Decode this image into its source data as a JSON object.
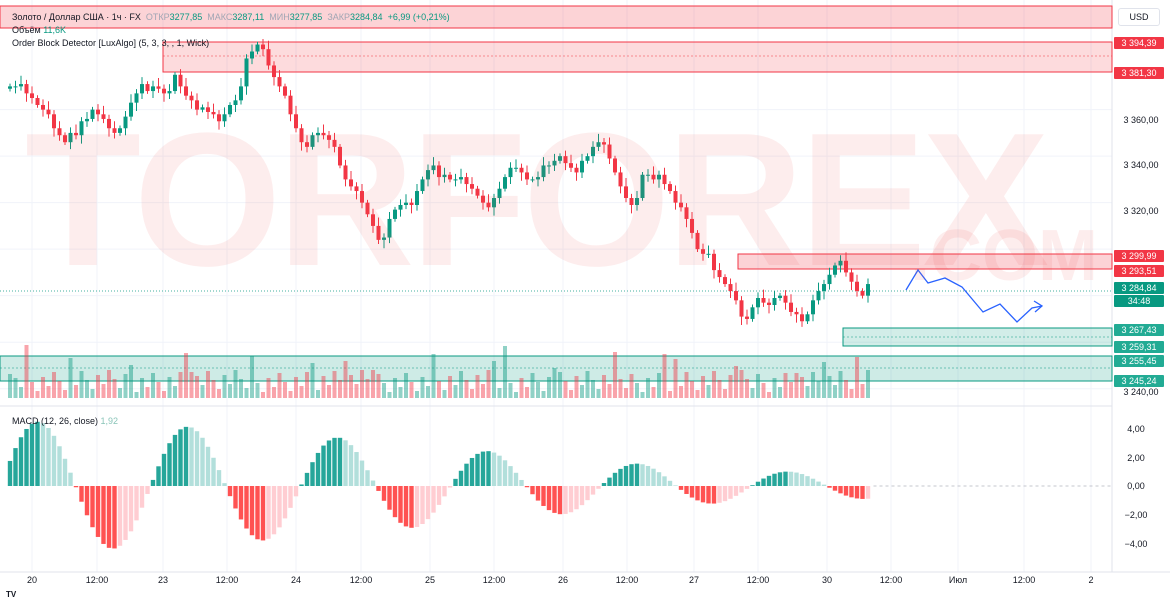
{
  "legend": {
    "symbol": "Золото / Доллар США · 1ч · FX",
    "open_label": "ОТКР",
    "open": "3277,85",
    "high_label": "МАКС",
    "high": "3287,11",
    "low_label": "МИН",
    "low": "3277,85",
    "close_label": "ЗАКР",
    "close": "3284,84",
    "change": "+6,99 (+0,21%)",
    "volume_label": "Объём",
    "volume": "11,6K",
    "indicator": "Order Block Detector [LuxAlgo] (5, 3, 3, , 1, Wick)",
    "macd": "MACD (12, 26, close)",
    "macd_value": "1,92"
  },
  "currency_button": "USD",
  "watermark": {
    "main": "TORFOREX",
    "domain": ".COM"
  },
  "tv_logo": "TV",
  "price_axis": {
    "ticks": [
      "3 360,00",
      "3 340,00",
      "3 320,00",
      "3 240,00"
    ],
    "boxes": [
      {
        "text": "3 394,39",
        "color": "#f23645"
      },
      {
        "text": "3 381,30",
        "color": "#f23645"
      },
      {
        "text": "3 299,99",
        "color": "#f23645"
      },
      {
        "text": "3 293,51",
        "color": "#f23645"
      },
      {
        "text": "3 284,84",
        "color": "#089981"
      },
      {
        "text": "34:48",
        "color": "#089981"
      },
      {
        "text": "3 267,43",
        "color": "#22ab94"
      },
      {
        "text": "3 259,31",
        "color": "#22ab94"
      },
      {
        "text": "3 255,45",
        "color": "#22ab94"
      },
      {
        "text": "3 245,24",
        "color": "#22ab94"
      }
    ]
  },
  "macd_axis": {
    "ticks": [
      "4,00",
      "2,00",
      "0,00",
      "−2,00",
      "−4,00"
    ]
  },
  "time_axis": {
    "ticks": [
      "20",
      "12:00",
      "23",
      "12:00",
      "24",
      "12:00",
      "25",
      "12:00",
      "26",
      "12:00",
      "27",
      "12:00",
      "30",
      "12:00",
      "Июл",
      "12:00",
      "2"
    ]
  },
  "colors": {
    "up": "#089981",
    "down": "#f23645",
    "bear_zone": "#f23645",
    "bull_zone": "#089981",
    "projection": "#2962ff"
  },
  "chart_data": {
    "type": "candlestick",
    "symbol": "XAUUSD",
    "timeframe": "1h",
    "ylim": [
      3236,
      3405
    ],
    "close_series": [
      3370,
      3370,
      3371,
      3367,
      3365,
      3362,
      3360,
      3358,
      3352,
      3349,
      3346,
      3350,
      3349,
      3355,
      3356,
      3360,
      3358,
      3356,
      3352,
      3350,
      3352,
      3357,
      3363,
      3367,
      3371,
      3368,
      3370,
      3369,
      3367,
      3368,
      3375,
      3370,
      3366,
      3364,
      3360,
      3361,
      3359,
      3358,
      3355,
      3358,
      3362,
      3364,
      3370,
      3382,
      3385,
      3388,
      3386,
      3379,
      3374,
      3370,
      3366,
      3358,
      3352,
      3346,
      3344,
      3349,
      3350,
      3349,
      3347,
      3344,
      3336,
      3330,
      3327,
      3325,
      3320,
      3315,
      3310,
      3304,
      3305,
      3313,
      3317,
      3319,
      3320,
      3319,
      3325,
      3330,
      3334,
      3336,
      3331,
      3332,
      3330,
      3330,
      3331,
      3328,
      3326,
      3323,
      3320,
      3318,
      3322,
      3326,
      3331,
      3335,
      3335,
      3333,
      3330,
      3330,
      3331,
      3336,
      3336,
      3338,
      3340,
      3337,
      3335,
      3333,
      3338,
      3340,
      3344,
      3346,
      3345,
      3339,
      3333,
      3327,
      3322,
      3319,
      3322,
      3332,
      3332,
      3330,
      3332,
      3328,
      3325,
      3320,
      3318,
      3313,
      3307,
      3300,
      3298,
      3298,
      3291,
      3288,
      3285,
      3282,
      3278,
      3271,
      3270,
      3275,
      3279,
      3277,
      3276,
      3279,
      3280,
      3277,
      3273,
      3272,
      3269,
      3272,
      3278,
      3282,
      3285,
      3289,
      3293,
      3295,
      3290,
      3286,
      3282,
      3280,
      3285
    ]
  }
}
